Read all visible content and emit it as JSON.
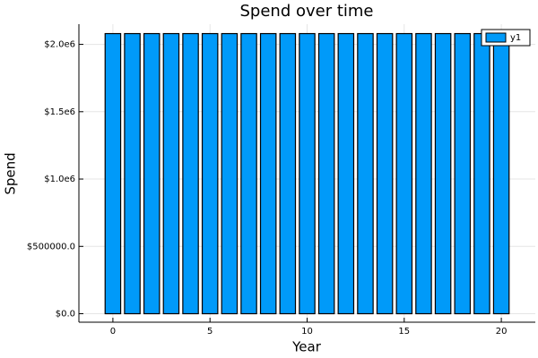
{
  "chart_data": {
    "type": "bar",
    "title": "Spend over time",
    "x_label": "Year",
    "y_label": "Spend",
    "x": [
      0,
      1,
      2,
      3,
      4,
      5,
      6,
      7,
      8,
      9,
      10,
      11,
      12,
      13,
      14,
      15,
      16,
      17,
      18,
      19,
      20
    ],
    "series": [
      {
        "name": "y1",
        "color": "#009af9",
        "values": [
          2080000,
          2080000,
          2080000,
          2080000,
          2080000,
          2080000,
          2080000,
          2080000,
          2080000,
          2080000,
          2080000,
          2080000,
          2080000,
          2080000,
          2080000,
          2080000,
          2080000,
          2080000,
          2080000,
          2080000,
          2080000
        ]
      }
    ],
    "xlim": [
      -1.75,
      21.75
    ],
    "xticks": [
      0,
      5,
      10,
      15,
      20
    ],
    "ylim": [
      -63000,
      2150000
    ],
    "yticks": [
      {
        "value": 0,
        "label": "$0.0"
      },
      {
        "value": 500000,
        "label": "$500000.0"
      },
      {
        "value": 1000000,
        "label": "$1.0e6"
      },
      {
        "value": 1500000,
        "label": "$1.5e6"
      },
      {
        "value": 2000000,
        "label": "$2.0e6"
      }
    ],
    "grid": true,
    "legend": "top-right",
    "bar_width": 0.8
  }
}
